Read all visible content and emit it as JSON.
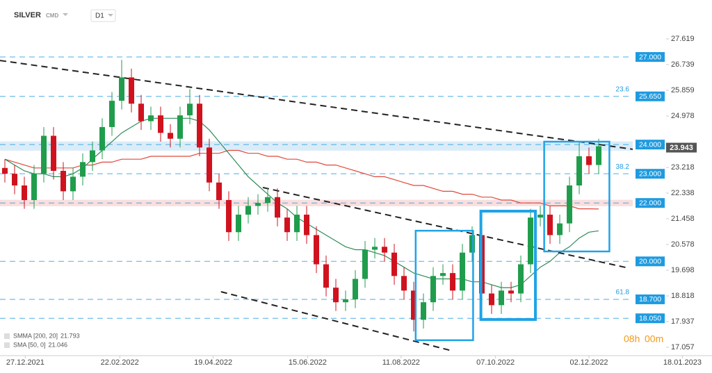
{
  "header": {
    "symbol": "SILVER",
    "market": "CMD",
    "interval": "D1"
  },
  "timer": {
    "hours": "08h",
    "minutes": "00m"
  },
  "chart_data": {
    "type": "candlestick",
    "xlim": [
      -0.5,
      72.64
    ],
    "ylim": [
      16.772,
      28.951
    ],
    "xticks": [
      {
        "value": 2.1,
        "label": "27.12.2021"
      },
      {
        "value": 11.8,
        "label": "22.02.2022"
      },
      {
        "value": 21.4,
        "label": "19.04.2022"
      },
      {
        "value": 31.1,
        "label": "15.06.2022"
      },
      {
        "value": 40.7,
        "label": "11.08.2022"
      },
      {
        "value": 50.4,
        "label": "07.10.2022"
      },
      {
        "value": 60.0,
        "label": "02.12.2022"
      },
      {
        "value": 69.6,
        "label": "18.01.2023"
      }
    ],
    "yticks": [
      27.619,
      26.739,
      25.859,
      24.978,
      23.218,
      22.338,
      21.458,
      20.578,
      19.698,
      18.818,
      17.937,
      17.057
    ],
    "up_color": "#1f9d4c",
    "down_color": "#d0121f",
    "open": [
      23.2,
      23.0,
      22.6,
      22.1,
      23.0,
      24.3,
      23.1,
      22.4,
      22.9,
      23.4,
      23.8,
      24.6,
      25.5,
      26.3,
      25.4,
      24.8,
      25.0,
      24.4,
      24.2,
      25.0,
      25.4,
      23.9,
      22.7,
      22.1,
      21.0,
      21.6,
      21.9,
      22.0,
      22.2,
      21.5,
      21.0,
      21.6,
      20.9,
      19.9,
      19.1,
      18.6,
      18.7,
      19.4,
      20.4,
      20.5,
      20.3,
      19.5,
      19.0,
      18.0,
      18.6,
      19.5,
      19.6,
      19.0,
      20.3,
      20.9,
      18.9,
      18.5,
      19.0,
      18.9,
      19.9,
      21.5,
      21.6,
      20.9,
      21.3,
      22.6,
      23.6,
      23.3
    ],
    "high": [
      23.5,
      23.3,
      22.9,
      23.3,
      24.6,
      24.6,
      23.4,
      23.2,
      23.7,
      24.1,
      24.9,
      25.8,
      26.9,
      26.6,
      25.7,
      25.3,
      25.3,
      24.7,
      25.3,
      25.9,
      25.7,
      24.2,
      23.0,
      22.4,
      21.9,
      22.2,
      22.3,
      22.5,
      22.5,
      21.8,
      21.9,
      21.9,
      21.2,
      20.2,
      19.4,
      19.0,
      19.7,
      20.7,
      20.8,
      20.8,
      20.6,
      19.8,
      19.3,
      18.9,
      19.8,
      19.9,
      19.9,
      20.6,
      21.2,
      21.2,
      19.2,
      19.3,
      19.3,
      20.2,
      21.8,
      21.9,
      21.9,
      21.6,
      22.9,
      24.1,
      23.9,
      24.2
    ],
    "low": [
      22.7,
      22.3,
      21.8,
      21.8,
      22.7,
      22.8,
      22.1,
      22.1,
      22.6,
      23.1,
      23.5,
      24.3,
      25.2,
      25.1,
      24.5,
      24.5,
      24.1,
      23.9,
      23.9,
      24.7,
      23.6,
      22.4,
      21.8,
      20.7,
      20.7,
      21.3,
      21.6,
      21.7,
      21.2,
      20.7,
      20.7,
      20.6,
      19.6,
      18.8,
      18.3,
      18.3,
      18.4,
      19.1,
      20.1,
      20.0,
      19.2,
      18.7,
      17.6,
      17.7,
      18.3,
      19.2,
      18.7,
      18.7,
      20.0,
      18.6,
      18.2,
      18.2,
      18.6,
      18.6,
      19.6,
      21.2,
      20.6,
      20.6,
      21.0,
      22.3,
      23.0,
      23.0
    ],
    "close": [
      23.0,
      22.6,
      22.1,
      23.0,
      24.3,
      23.1,
      22.4,
      22.9,
      23.4,
      23.8,
      24.6,
      25.5,
      26.3,
      25.4,
      24.8,
      25.0,
      24.4,
      24.2,
      25.0,
      25.4,
      23.9,
      22.7,
      22.1,
      21.0,
      21.6,
      21.9,
      22.0,
      22.2,
      21.5,
      21.0,
      21.6,
      20.9,
      19.9,
      19.1,
      18.6,
      18.7,
      19.4,
      20.4,
      20.5,
      20.3,
      19.5,
      19.0,
      18.0,
      18.6,
      19.5,
      19.6,
      19.0,
      20.3,
      20.9,
      18.9,
      18.5,
      19.0,
      18.9,
      19.9,
      21.5,
      21.6,
      20.9,
      21.3,
      22.6,
      23.6,
      23.3,
      23.943
    ],
    "series": [
      {
        "name": "SMMA [200, 20]",
        "color": "#e0483a",
        "values": [
          23.5,
          23.4,
          23.3,
          23.2,
          23.2,
          23.2,
          23.2,
          23.2,
          23.3,
          23.3,
          23.4,
          23.4,
          23.5,
          23.5,
          23.5,
          23.6,
          23.6,
          23.6,
          23.6,
          23.6,
          23.7,
          23.7,
          23.7,
          23.8,
          23.8,
          23.7,
          23.7,
          23.6,
          23.6,
          23.5,
          23.5,
          23.4,
          23.4,
          23.3,
          23.3,
          23.2,
          23.1,
          23.0,
          22.9,
          22.9,
          22.8,
          22.7,
          22.6,
          22.6,
          22.5,
          22.4,
          22.4,
          22.3,
          22.3,
          22.2,
          22.2,
          22.1,
          22.1,
          22.0,
          22.0,
          22.0,
          21.9,
          21.9,
          21.9,
          21.8,
          21.8,
          21.793
        ]
      },
      {
        "name": "SMA [50, 0]",
        "color": "#2e8b57",
        "values": [
          23.5,
          23.3,
          23.1,
          23.0,
          23.0,
          22.9,
          22.9,
          23.0,
          23.2,
          23.5,
          23.8,
          24.1,
          24.4,
          24.6,
          24.8,
          24.9,
          24.9,
          24.9,
          24.9,
          24.9,
          24.8,
          24.5,
          24.1,
          23.7,
          23.3,
          22.9,
          22.6,
          22.3,
          22.0,
          21.8,
          21.5,
          21.3,
          21.1,
          20.9,
          20.7,
          20.5,
          20.4,
          20.4,
          20.3,
          20.2,
          20.0,
          19.8,
          19.6,
          19.5,
          19.4,
          19.4,
          19.4,
          19.4,
          19.3,
          19.3,
          19.2,
          19.1,
          19.1,
          19.2,
          19.5,
          19.8,
          20.0,
          20.3,
          20.5,
          20.8,
          21.0,
          21.046
        ]
      }
    ],
    "levels": [
      {
        "value": 27,
        "label": "27.000"
      },
      {
        "value": 25.65,
        "label": "25.650",
        "fib": 23.6
      },
      {
        "value": 24,
        "label": "24.000"
      },
      {
        "value": 23,
        "label": "23.000",
        "fib": 38.2
      },
      {
        "value": 22,
        "label": "22.000"
      },
      {
        "value": 20,
        "label": "20.000"
      },
      {
        "value": 18.7,
        "label": "18.700",
        "fib": 61.8
      },
      {
        "value": 18.05,
        "label": "18.050"
      }
    ],
    "level_color": "#1e9be0",
    "zones": [
      {
        "y": [
          23.8,
          24.1
        ],
        "color": "#cfe6f7"
      },
      {
        "y": [
          21.9,
          22.1
        ],
        "color": "#f9d4d4"
      }
    ],
    "trendlines": [
      {
        "x": [
          -0.5,
          64.5
        ],
        "y": [
          26.88,
          23.84
        ]
      },
      {
        "x": [
          26.5,
          63.8
        ],
        "y": [
          22.53,
          19.79
        ]
      },
      {
        "x": [
          22.2,
          45.9
        ],
        "y": [
          18.96,
          16.94
        ]
      }
    ],
    "boxes": [
      {
        "x": [
          42.2,
          48.1
        ],
        "y": [
          21.05,
          17.3
        ]
      },
      {
        "x": [
          48.9,
          54.5
        ],
        "y": [
          21.72,
          18.01
        ]
      },
      {
        "x": [
          55.4,
          62.1
        ],
        "y": [
          24.1,
          20.34
        ]
      }
    ],
    "box_color": "#1fa3e6"
  }
}
